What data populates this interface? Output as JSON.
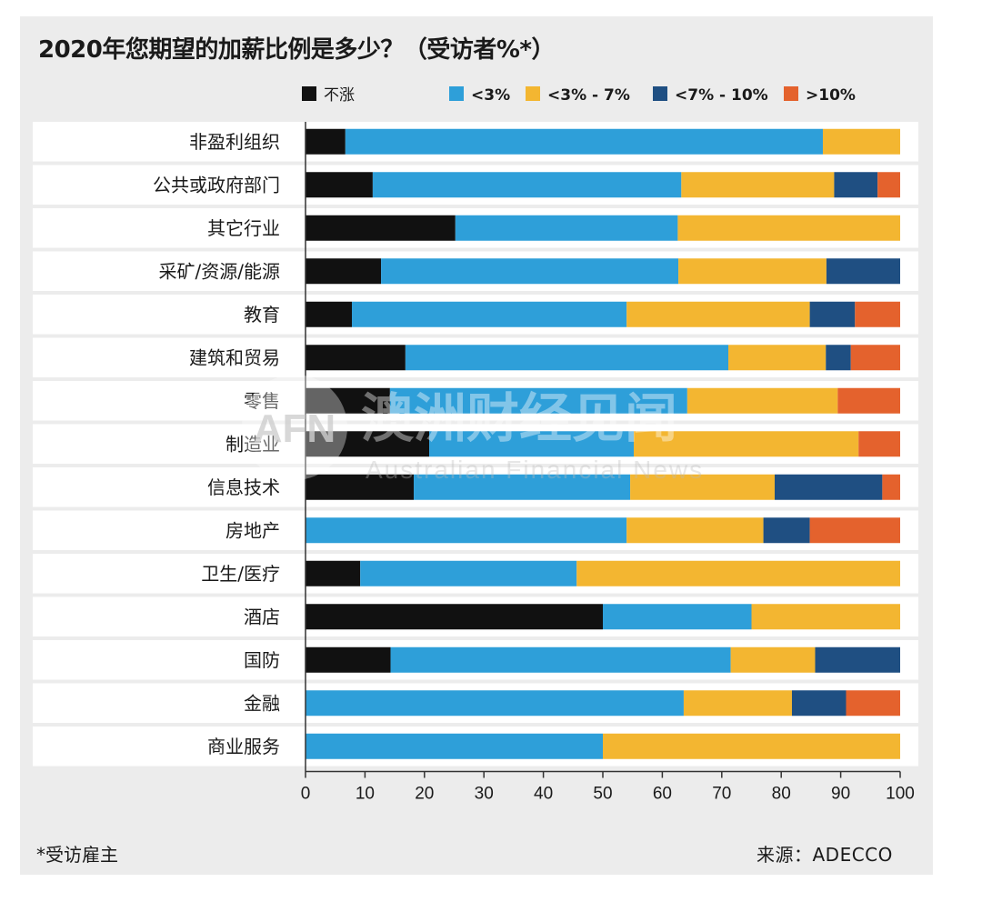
{
  "header": {
    "title": "2020年您期望的加薪比例是多少？（受访者%*）"
  },
  "footer": {
    "note": "*受访雇主",
    "source": "来源：ADECCO"
  },
  "watermark": {
    "logo_text": "AFN",
    "cn_text": "澳洲财经见闻",
    "en_text": "Australian Financial News"
  },
  "colors": {
    "no_raise": "#111111",
    "lt3": "#2e9fd9",
    "3to7": "#f3b631",
    "7to10": "#1f4f82",
    "gt10": "#e4622d"
  },
  "chart_data": {
    "type": "bar",
    "orientation": "horizontal",
    "stacked": true,
    "title": "2020年您期望的加薪比例是多少？（受访者%*）",
    "xlim": [
      0,
      100
    ],
    "xticks": [
      "0",
      "10",
      "20",
      "30",
      "40",
      "50",
      "60",
      "70",
      "80",
      "90",
      "100"
    ],
    "legend_position": "top",
    "categories": [
      "非盈利组织",
      "公共或政府部门",
      "其它行业",
      "采矿/资源/能源",
      "教育",
      "建筑和贸易",
      "零售",
      "制造业",
      "信息技术",
      "房地产",
      "卫生/医疗",
      "酒店",
      "国防",
      "金融",
      "商业服务"
    ],
    "series": [
      {
        "name": "不涨",
        "color": "#111111",
        "values": [
          6.7,
          11.3,
          25.2,
          12.7,
          7.8,
          16.8,
          14.2,
          20.8,
          18.2,
          0,
          9.2,
          50.0,
          14.3,
          0,
          0
        ]
      },
      {
        "name": "<3%",
        "color": "#2e9fd9",
        "values": [
          80.3,
          51.9,
          37.4,
          50.0,
          46.2,
          54.3,
          50.0,
          34.4,
          36.4,
          54.0,
          36.4,
          25.0,
          57.2,
          63.6,
          50.0
        ]
      },
      {
        "name": "<3% - 7%",
        "color": "#f3b631",
        "values": [
          13.0,
          25.7,
          37.4,
          24.9,
          30.8,
          16.4,
          25.3,
          37.8,
          24.3,
          23.0,
          54.4,
          25.0,
          14.2,
          18.2,
          50.0
        ]
      },
      {
        "name": "<7% - 10%",
        "color": "#1f4f82",
        "values": [
          0,
          7.3,
          0,
          12.4,
          7.6,
          4.2,
          0,
          0,
          18.1,
          7.8,
          0,
          0,
          14.3,
          9.1,
          0
        ]
      },
      {
        "name": ">10%",
        "color": "#e4622d",
        "values": [
          0,
          3.8,
          0,
          0,
          7.6,
          8.3,
          10.5,
          7.0,
          3.0,
          15.2,
          0,
          0,
          0,
          9.1,
          0
        ]
      }
    ]
  }
}
